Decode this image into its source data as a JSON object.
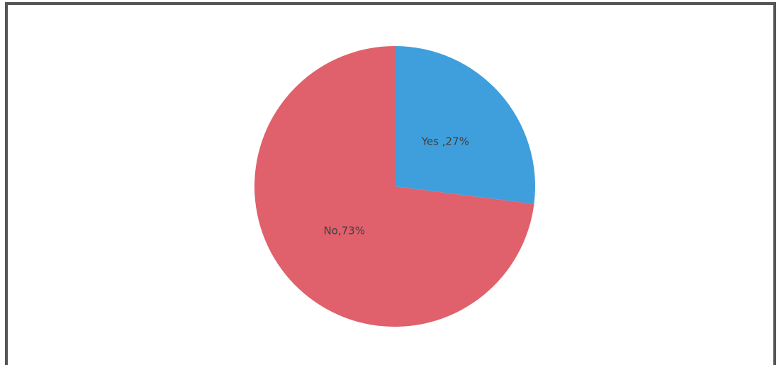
{
  "chart_data": {
    "type": "pie",
    "values": [
      27,
      73
    ],
    "value_labels": [
      "Yes ,27%",
      "No,73%"
    ],
    "colors": [
      "#3f9fdc",
      "#e0606c"
    ]
  }
}
